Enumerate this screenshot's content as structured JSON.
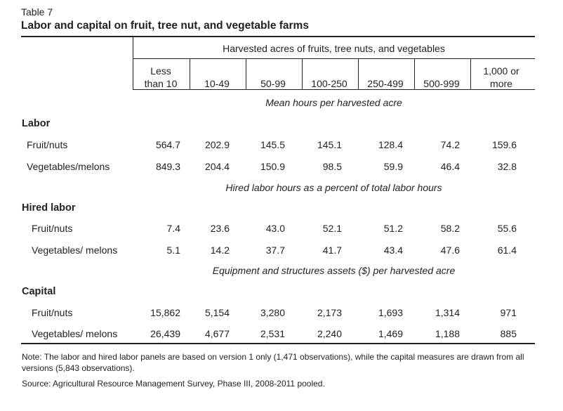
{
  "table": {
    "label": "Table 7",
    "title": "Labor and capital on fruit, tree nut, and vegetable farms",
    "spanner": "Harvested acres of fruits, tree nuts, and vegetables",
    "columns": [
      [
        "Less",
        "than 10"
      ],
      [
        "10-49"
      ],
      [
        "50-99"
      ],
      [
        "100-250"
      ],
      [
        "250-499"
      ],
      [
        "500-999"
      ],
      [
        "1,000 or",
        "more"
      ]
    ],
    "sections": [
      {
        "caption": "Mean hours per harvested acre",
        "heading": "Labor",
        "rows": [
          {
            "label": "Fruit/nuts",
            "values": [
              "564.7",
              "202.9",
              "145.5",
              "145.1",
              "128.4",
              "74.2",
              "159.6"
            ]
          },
          {
            "label": "Vegetables/melons",
            "values": [
              "849.3",
              "204.4",
              "150.9",
              "98.5",
              "59.9",
              "46.4",
              "32.8"
            ]
          }
        ]
      },
      {
        "caption": "Hired labor hours as a percent of total labor hours",
        "heading": "Hired labor",
        "rows": [
          {
            "label": "Fruit/nuts",
            "values": [
              "7.4",
              "23.6",
              "43.0",
              "52.1",
              "51.2",
              "58.2",
              "55.6"
            ]
          },
          {
            "label": "Vegetables/ melons",
            "values": [
              "5.1",
              "14.2",
              "37.7",
              "41.7",
              "43.4",
              "47.6",
              "61.4"
            ]
          }
        ]
      },
      {
        "caption": "Equipment and structures assets ($) per harvested acre",
        "heading": "Capital",
        "rows": [
          {
            "label": "Fruit/nuts",
            "values": [
              "15,862",
              "5,154",
              "3,280",
              "2,173",
              "1,693",
              "1,314",
              "971"
            ]
          },
          {
            "label": "Vegetables/ melons",
            "values": [
              "26,439",
              "4,677",
              "2,531",
              "2,240",
              "1,469",
              "1,188",
              "885"
            ]
          }
        ]
      }
    ],
    "note": "Note: The labor and hired labor panels are based on version 1 only (1,471 observations), while the capital measures are drawn from all versions (5,843 observations).",
    "source": "Source: Agricultural Resource Management Survey, Phase III, 2008-2011 pooled."
  }
}
